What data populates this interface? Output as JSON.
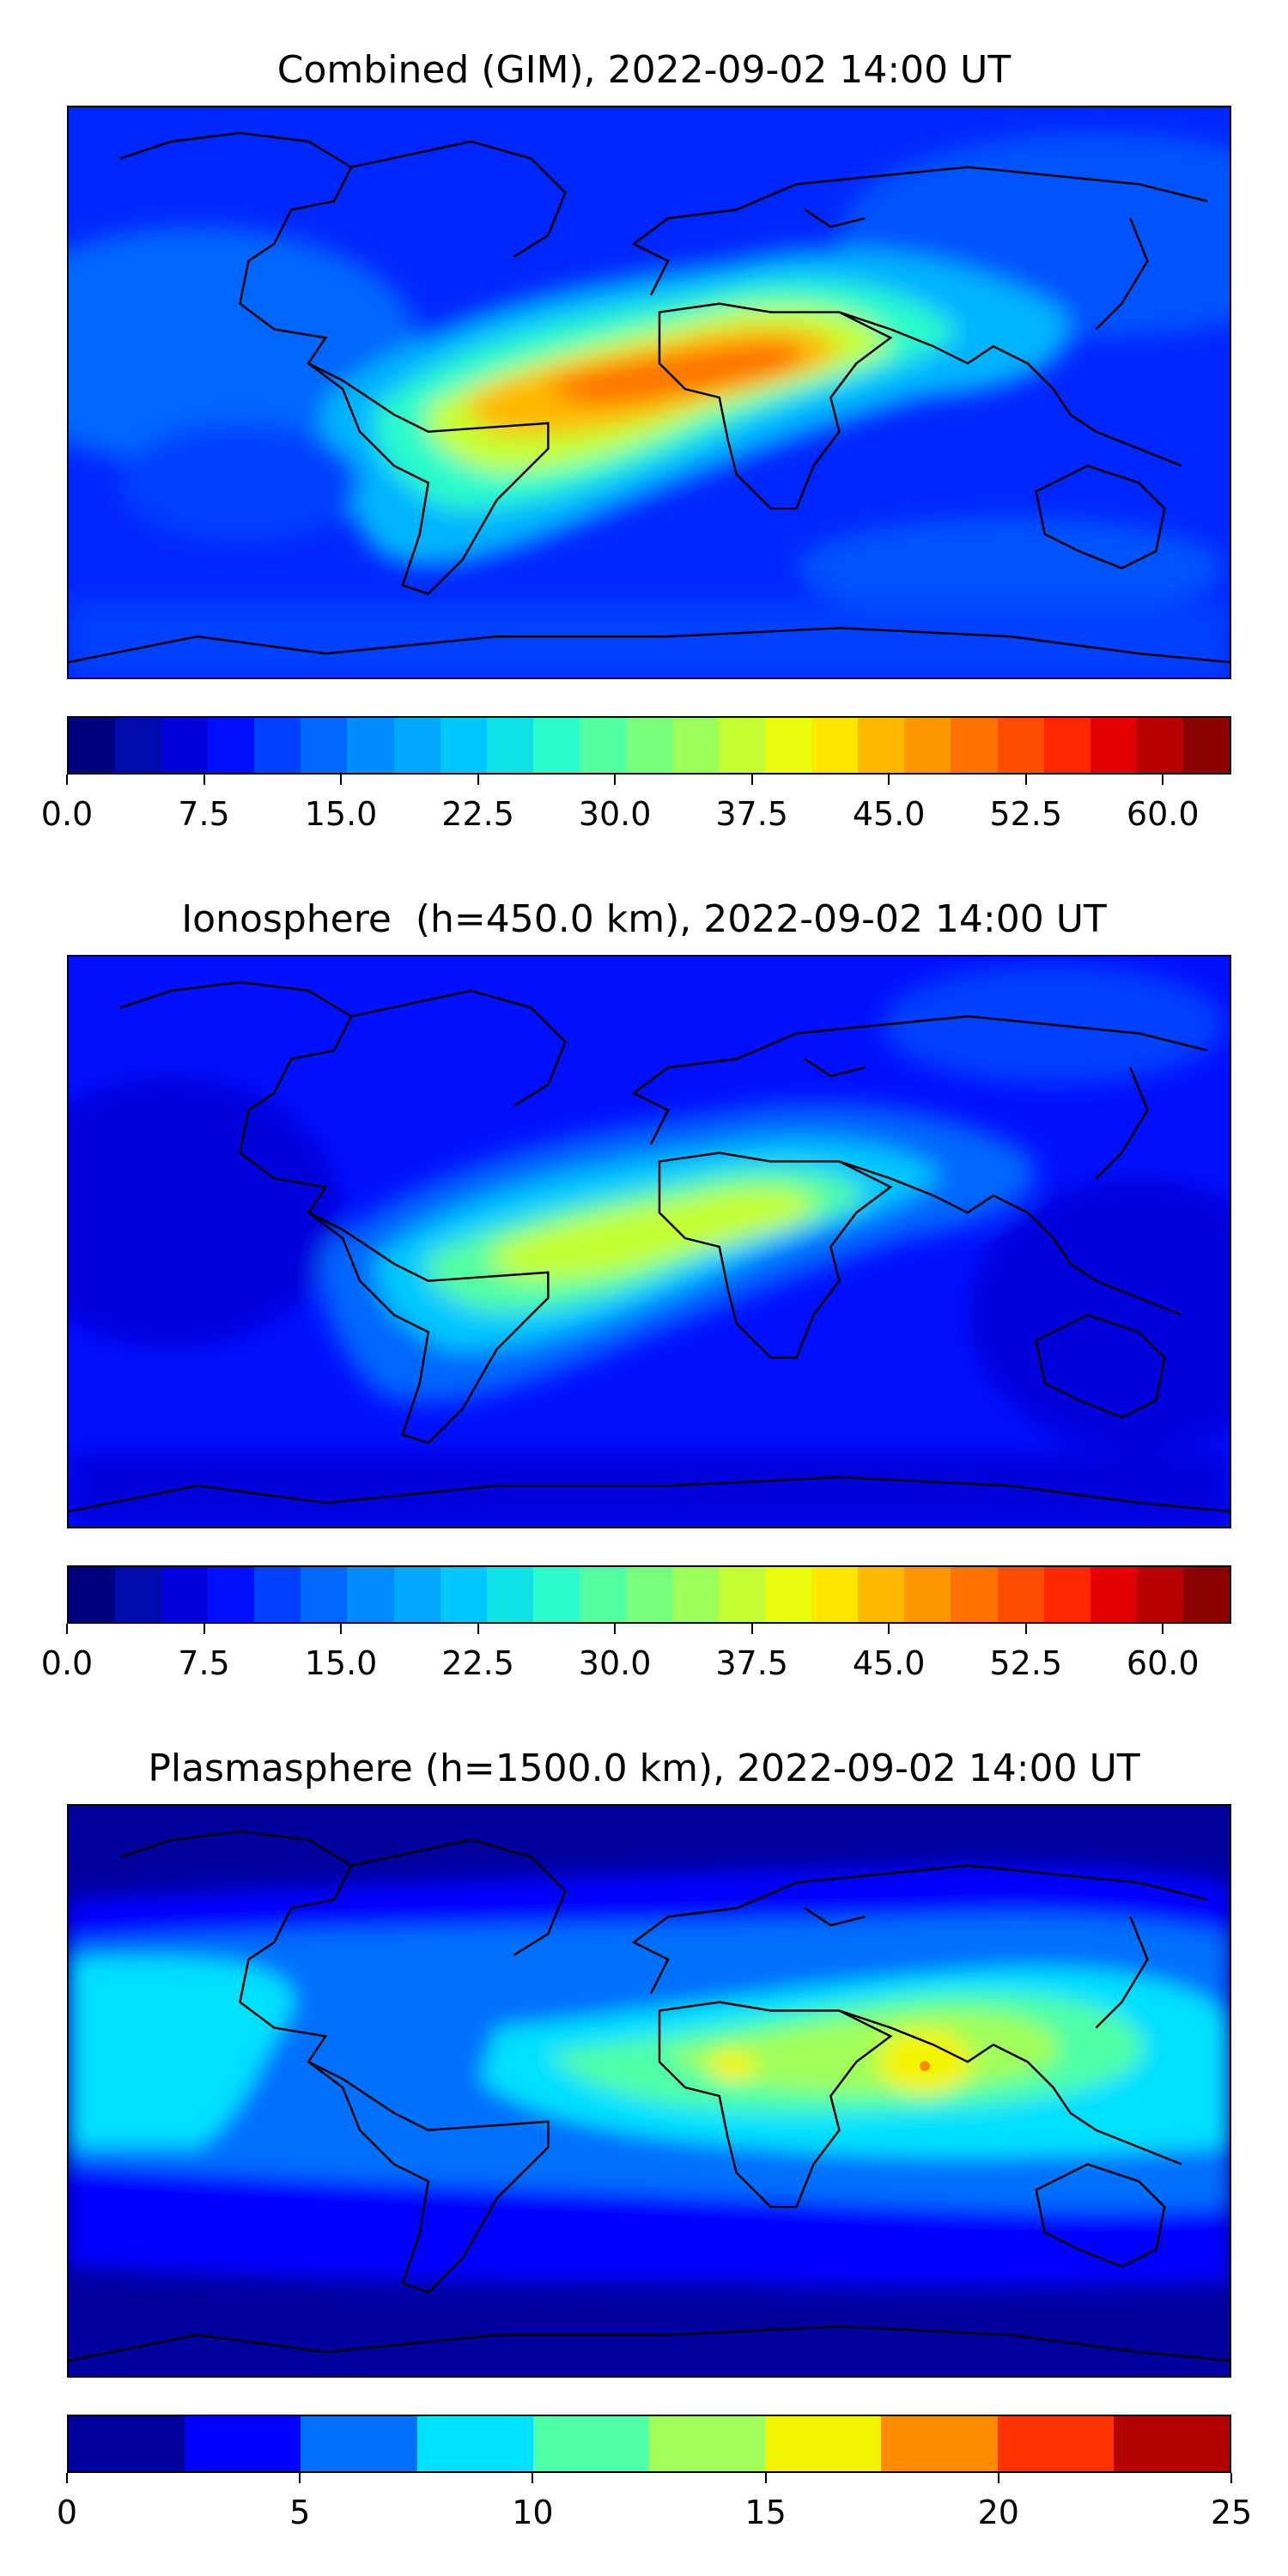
{
  "panels": [
    {
      "title": "Combined (GIM), 2022-09-02 14:00 UT",
      "colorbar": {
        "colors": [
          "#00007f",
          "#000bae",
          "#0000dc",
          "#0010ff",
          "#0040ff",
          "#0066ff",
          "#008cff",
          "#00a8ff",
          "#00c8ff",
          "#0ee2e5",
          "#2cfbcb",
          "#54ffa2",
          "#78ff7e",
          "#9cff5a",
          "#c4ff33",
          "#eaff0d",
          "#ffe600",
          "#ffb800",
          "#ff9800",
          "#ff7200",
          "#ff4d00",
          "#ff2600",
          "#e30000",
          "#b80000",
          "#8b0000"
        ],
        "vmin": 0.0,
        "vmax": 63.75,
        "ticks": [
          "0.0",
          "7.5",
          "15.0",
          "22.5",
          "30.0",
          "37.5",
          "45.0",
          "52.5",
          "60.0"
        ],
        "tick_values": [
          0,
          7.5,
          15,
          22.5,
          30,
          37.5,
          45,
          52.5,
          60
        ]
      }
    },
    {
      "title": "Ionosphere  (h=450.0 km), 2022-09-02 14:00 UT",
      "colorbar": {
        "colors": [
          "#00007f",
          "#000bae",
          "#0000dc",
          "#0010ff",
          "#0040ff",
          "#0066ff",
          "#008cff",
          "#00a8ff",
          "#00c8ff",
          "#0ee2e5",
          "#2cfbcb",
          "#54ffa2",
          "#78ff7e",
          "#9cff5a",
          "#c4ff33",
          "#eaff0d",
          "#ffe600",
          "#ffb800",
          "#ff9800",
          "#ff7200",
          "#ff4d00",
          "#ff2600",
          "#e30000",
          "#b80000",
          "#8b0000"
        ],
        "vmin": 0.0,
        "vmax": 63.75,
        "ticks": [
          "0.0",
          "7.5",
          "15.0",
          "22.5",
          "30.0",
          "37.5",
          "45.0",
          "52.5",
          "60.0"
        ],
        "tick_values": [
          0,
          7.5,
          15,
          22.5,
          30,
          37.5,
          45,
          52.5,
          60
        ]
      }
    },
    {
      "title": "Plasmasphere (h=1500.0 km), 2022-09-02 14:00 UT",
      "colorbar": {
        "colors": [
          "#00009f",
          "#0000ff",
          "#0070ff",
          "#00e0ff",
          "#50ffa8",
          "#a0ff58",
          "#f4f400",
          "#ff8c00",
          "#ff3300",
          "#b00000"
        ],
        "vmin": 0,
        "vmax": 25,
        "ticks": [
          "0",
          "5",
          "10",
          "15",
          "20",
          "25"
        ],
        "tick_values": [
          0,
          5,
          10,
          15,
          20,
          25
        ]
      }
    }
  ]
}
